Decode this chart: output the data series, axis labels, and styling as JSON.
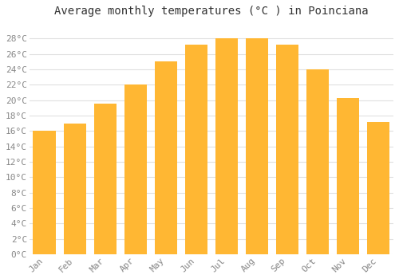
{
  "title": "Average monthly temperatures (°C ) in Poinciana",
  "months": [
    "Jan",
    "Feb",
    "Mar",
    "Apr",
    "May",
    "Jun",
    "Jul",
    "Aug",
    "Sep",
    "Oct",
    "Nov",
    "Dec"
  ],
  "values": [
    16,
    17,
    19.5,
    22,
    25,
    27.2,
    28,
    28,
    27.2,
    24,
    20.3,
    17.2
  ],
  "bar_color_top": "#FFBB33",
  "bar_color_bottom": "#FFA500",
  "background_color": "#FFFFFF",
  "grid_color": "#E0E0E0",
  "ylim": [
    0,
    30
  ],
  "yticks": [
    0,
    2,
    4,
    6,
    8,
    10,
    12,
    14,
    16,
    18,
    20,
    22,
    24,
    26,
    28
  ],
  "title_fontsize": 10,
  "tick_fontsize": 8,
  "label_color": "#888888",
  "title_color": "#333333"
}
